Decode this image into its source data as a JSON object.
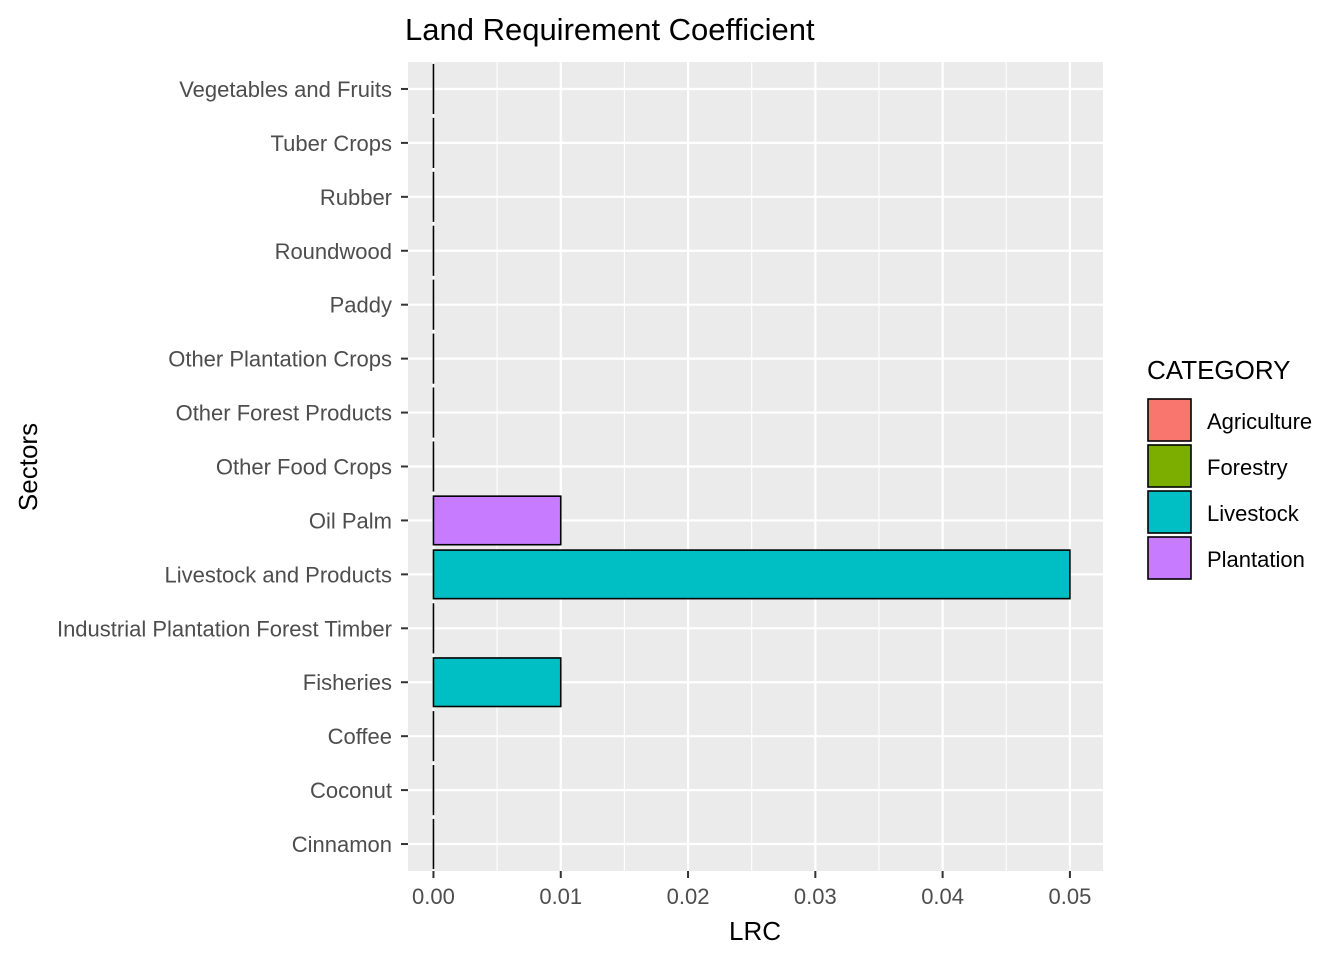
{
  "chart_data": {
    "type": "bar",
    "orientation": "horizontal",
    "title": "Land Requirement Coefficient",
    "xlabel": "LRC",
    "ylabel": "Sectors",
    "xlim": [
      -0.002,
      0.0526
    ],
    "x_ticks": [
      0.0,
      0.01,
      0.02,
      0.03,
      0.04,
      0.05
    ],
    "x_tick_labels": [
      "0.00",
      "0.01",
      "0.02",
      "0.03",
      "0.04",
      "0.05"
    ],
    "grid": true,
    "legend": {
      "title": "CATEGORY",
      "position": "right",
      "entries": [
        {
          "name": "Agriculture",
          "color": "#F8766D"
        },
        {
          "name": "Forestry",
          "color": "#7CAE00"
        },
        {
          "name": "Livestock",
          "color": "#00BFC4"
        },
        {
          "name": "Plantation",
          "color": "#C77CFF"
        }
      ]
    },
    "categories": [
      "Cinnamon",
      "Coconut",
      "Coffee",
      "Fisheries",
      "Industrial Plantation Forest Timber",
      "Livestock and Products",
      "Oil Palm",
      "Other Food Crops",
      "Other Forest Products",
      "Other Plantation Crops",
      "Paddy",
      "Roundwood",
      "Rubber",
      "Tuber Crops",
      "Vegetables and Fruits"
    ],
    "values": [
      0,
      0,
      0,
      0.01,
      0,
      0.05,
      0.01,
      0,
      0,
      0,
      0,
      0,
      0,
      0,
      0
    ],
    "bar_category": [
      "Plantation",
      "Plantation",
      "Plantation",
      "Livestock",
      "Forestry",
      "Livestock",
      "Plantation",
      "Agriculture",
      "Forestry",
      "Plantation",
      "Agriculture",
      "Forestry",
      "Plantation",
      "Agriculture",
      "Agriculture"
    ]
  },
  "colors": {
    "panel_background": "#EBEBEB",
    "grid_major": "#FFFFFF",
    "bar_outline": "#000000"
  }
}
